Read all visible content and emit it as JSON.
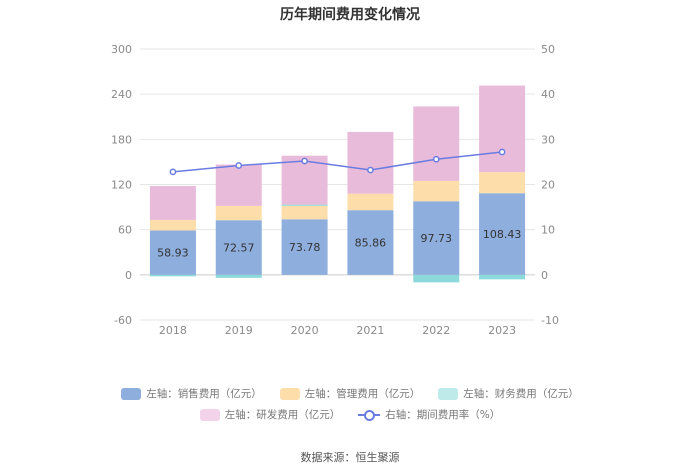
{
  "chart_data": {
    "type": "bar",
    "title": "历年期间费用变化情况",
    "categories": [
      "2018",
      "2019",
      "2020",
      "2021",
      "2022",
      "2023"
    ],
    "left_axis": {
      "ylim": [
        -60,
        300
      ],
      "ticks": [
        "300",
        "240",
        "180",
        "120",
        "60",
        "0",
        "-60"
      ]
    },
    "right_axis": {
      "ylim": [
        -10,
        50
      ],
      "ticks": [
        "50",
        "40",
        "30",
        "20",
        "10",
        "0",
        "-10"
      ]
    },
    "series": [
      {
        "name": "左轴：销售费用（亿元）",
        "axis": "left",
        "stack": "fees",
        "color": "#8eaedd",
        "values": [
          58.93,
          72.57,
          73.78,
          85.86,
          97.73,
          108.43
        ],
        "labels": [
          "58.93",
          "72.57",
          "73.78",
          "85.86",
          "97.73",
          "108.43"
        ]
      },
      {
        "name": "左轴：管理费用（亿元）",
        "axis": "left",
        "stack": "fees",
        "color": "#fddeab",
        "values": [
          14,
          19,
          18,
          22,
          27,
          28
        ]
      },
      {
        "name": "左轴：财务费用（亿元）",
        "axis": "left",
        "stack": "fees",
        "color": "#8cd9dc",
        "values": [
          -2,
          -4,
          1.5,
          0,
          -10,
          -6
        ]
      },
      {
        "name": "左轴：研发费用（亿元）",
        "axis": "left",
        "stack": "fees",
        "color": "#e8bbdb",
        "values": [
          45,
          55,
          65,
          82,
          99,
          115
        ]
      },
      {
        "name": "右轴：期间费用率（%）",
        "axis": "right",
        "type": "line",
        "color": "#6b7ce0",
        "values": [
          22.8,
          24.2,
          25.2,
          23.2,
          25.6,
          27.2
        ]
      }
    ],
    "legend_position": "bottom",
    "grid": true
  },
  "legend_rows": [
    [
      "左轴：销售费用（亿元）",
      "左轴：管理费用（亿元）",
      "左轴：财务费用（亿元）"
    ],
    [
      "左轴：研发费用（亿元）",
      "右轴：期间费用率（%）"
    ]
  ],
  "source_text": "数据来源：恒生聚源"
}
